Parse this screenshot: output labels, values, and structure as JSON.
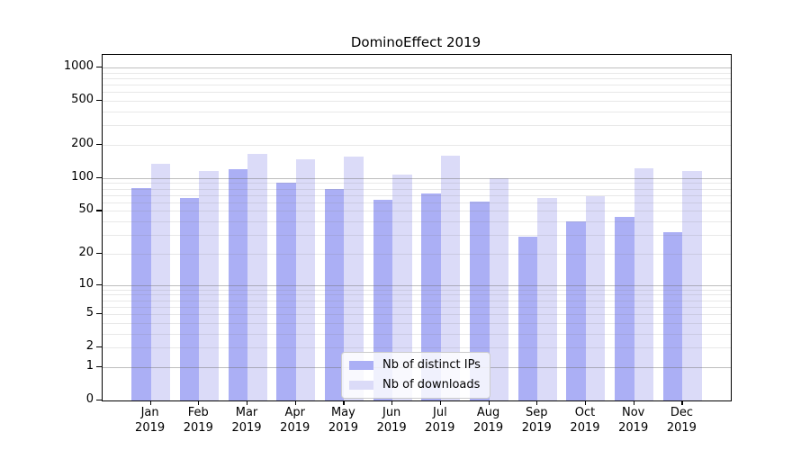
{
  "chart_data": {
    "type": "bar",
    "title": "DominoEffect 2019",
    "yscale": "symlog (position proportional to ln(1+y))",
    "grid": "horizontal, major at powers of 10 plus minor log subdivisions",
    "legend_position": "lower center",
    "months": [
      "Jan",
      "Feb",
      "Mar",
      "Apr",
      "May",
      "Jun",
      "Jul",
      "Aug",
      "Sep",
      "Oct",
      "Nov",
      "Dec"
    ],
    "year": "2019",
    "categories": [
      "Jan 2019",
      "Feb 2019",
      "Mar 2019",
      "Apr 2019",
      "May 2019",
      "Jun 2019",
      "Jul 2019",
      "Aug 2019",
      "Sep 2019",
      "Oct 2019",
      "Nov 2019",
      "Dec 2019"
    ],
    "series": [
      {
        "name": "Nb of distinct IPs",
        "color": "#abaff5",
        "values": [
          81,
          66,
          120,
          90,
          80,
          63,
          73,
          61,
          29,
          40,
          44,
          32
        ]
      },
      {
        "name": "Nb of downloads",
        "color": "#dbdbf8",
        "values": [
          134,
          117,
          167,
          148,
          156,
          107,
          160,
          100,
          66,
          68,
          122,
          115
        ]
      }
    ],
    "y_ticks": [
      1000,
      500,
      200,
      100,
      50,
      20,
      10,
      5,
      2,
      1,
      0
    ],
    "ylim": [
      0,
      1300
    ]
  },
  "colors": {
    "background": "#ffffff",
    "axis": "#000000",
    "major_grid": "#bdbdbd",
    "minor_grid": "#e8e8e8",
    "legend_border": "#cccccc",
    "text": "#000000"
  }
}
